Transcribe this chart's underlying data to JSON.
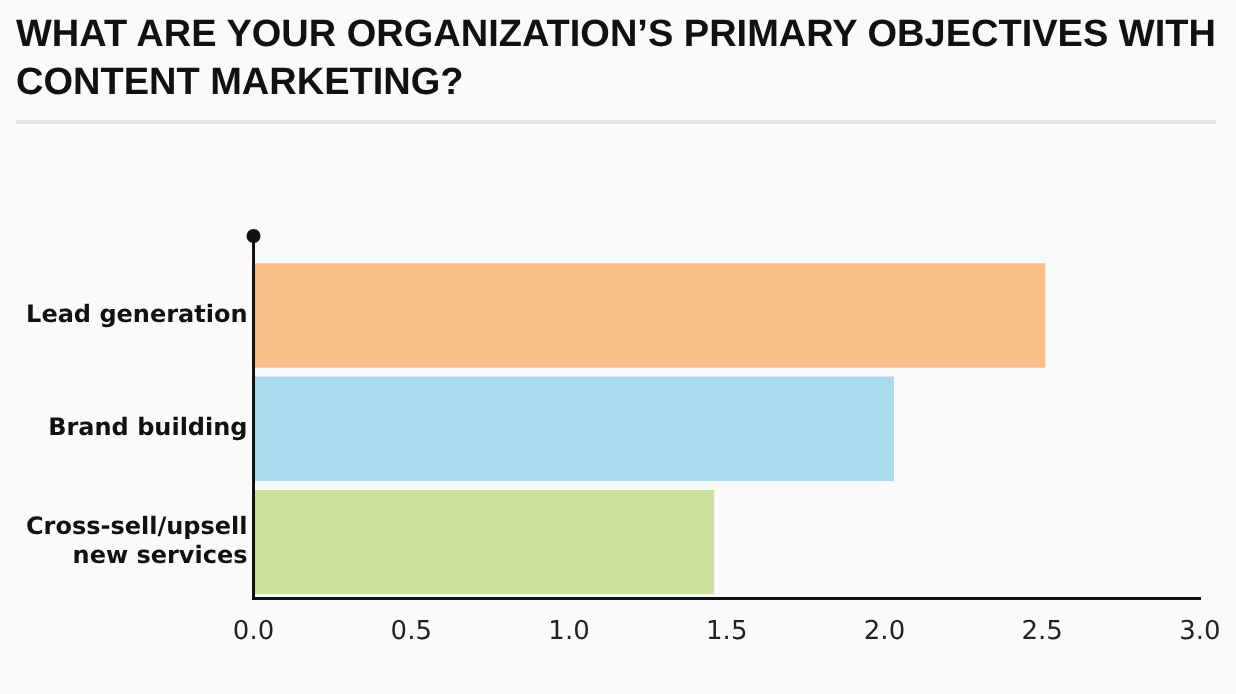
{
  "chart_data": {
    "type": "bar",
    "orientation": "horizontal",
    "title": "WHAT ARE YOUR ORGANIZATION’S PRIMARY OBJECTIVES WITH CONTENT MARKETING?",
    "categories": [
      "Lead generation",
      "Brand building",
      "Cross-sell/upsell new services"
    ],
    "values": [
      2.51,
      2.03,
      1.46
    ],
    "colors": [
      "#f9be8a",
      "#a9daf0",
      "#c9e19b"
    ],
    "xlim": [
      0,
      3
    ],
    "xticks": [
      {
        "value": 0,
        "label": "0.0"
      },
      {
        "value": 0.5,
        "label": "0.5"
      },
      {
        "value": 1,
        "label": "1.0"
      },
      {
        "value": 1.5,
        "label": "1.5"
      },
      {
        "value": 2,
        "label": "2.0"
      },
      {
        "value": 2.5,
        "label": "2.5"
      },
      {
        "value": 3,
        "label": "3.0"
      }
    ],
    "grid": false,
    "legend": false
  }
}
